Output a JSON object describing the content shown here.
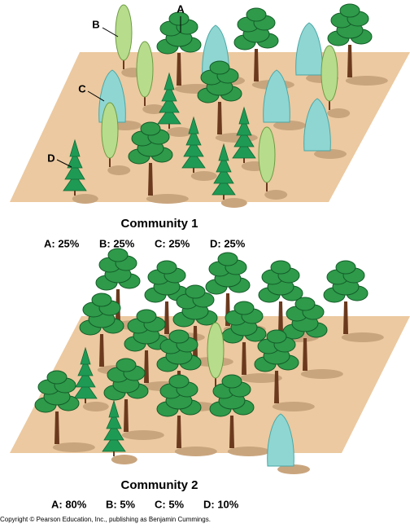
{
  "labels": [
    "A",
    "B",
    "C",
    "D"
  ],
  "communities": [
    {
      "title": "Community 1",
      "composition": [
        "A: 25%",
        "B: 25%",
        "C: 25%",
        "D: 25%"
      ]
    },
    {
      "title": "Community 2",
      "composition": [
        "A: 80%",
        "B: 5%",
        "C: 5%",
        "D: 10%"
      ]
    }
  ],
  "copyright": "Copyright © Pearson Education, Inc., publishing as Benjamin Cummings."
}
